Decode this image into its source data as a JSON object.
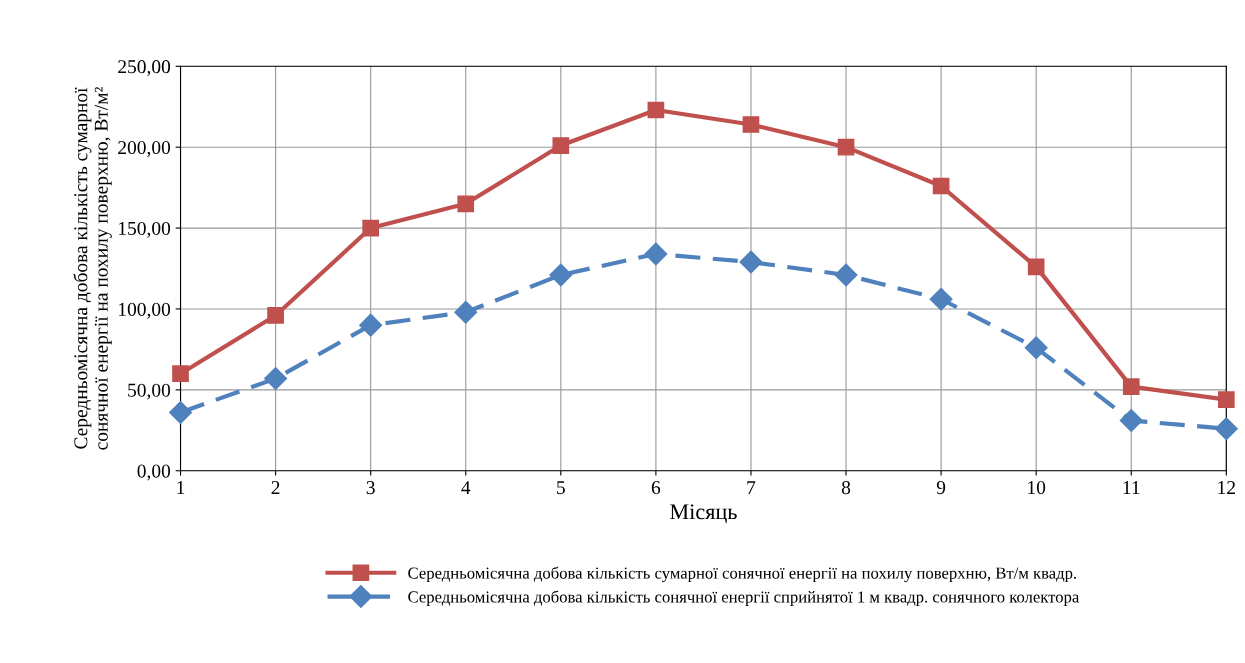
{
  "chart_data": {
    "type": "line",
    "xlabel": "Місяць",
    "ylabel": "Середньомісячна добова кількість сумарної\nсонячної енергії на похилу поверхню, Вт/м²",
    "x": [
      1,
      2,
      3,
      4,
      5,
      6,
      7,
      8,
      9,
      10,
      11,
      12
    ],
    "xlim": [
      1,
      12
    ],
    "xticks": [
      1,
      2,
      3,
      4,
      5,
      6,
      7,
      8,
      9,
      10,
      11,
      12
    ],
    "ylim": [
      0,
      250
    ],
    "yticks": [
      {
        "value": 0,
        "label": "0,00"
      },
      {
        "value": 50,
        "label": "50,00"
      },
      {
        "value": 100,
        "label": "100,00"
      },
      {
        "value": 150,
        "label": "150,00"
      },
      {
        "value": 200,
        "label": "200,00"
      },
      {
        "value": 250,
        "label": "250,00"
      }
    ],
    "grid": true,
    "legend": "bottom",
    "series": [
      {
        "name": "Середньомісячна добова кількість сумарної сонячної енергії на похилу поверхню, Вт/м квадр.",
        "color": "#c0504d",
        "marker": "square",
        "line_style": "solid",
        "values": [
          60,
          96,
          150,
          165,
          201,
          223,
          214,
          200,
          176,
          126,
          52,
          44
        ]
      },
      {
        "name": "Середньомісячна добова кількість сонячної енергії сприйнятої 1 м квадр. сонячного колектора",
        "color": "#4f81bd",
        "marker": "diamond",
        "line_style": "dashed",
        "values": [
          36,
          57,
          90,
          98,
          121,
          134,
          129,
          121,
          106,
          76,
          31,
          26
        ]
      }
    ]
  }
}
